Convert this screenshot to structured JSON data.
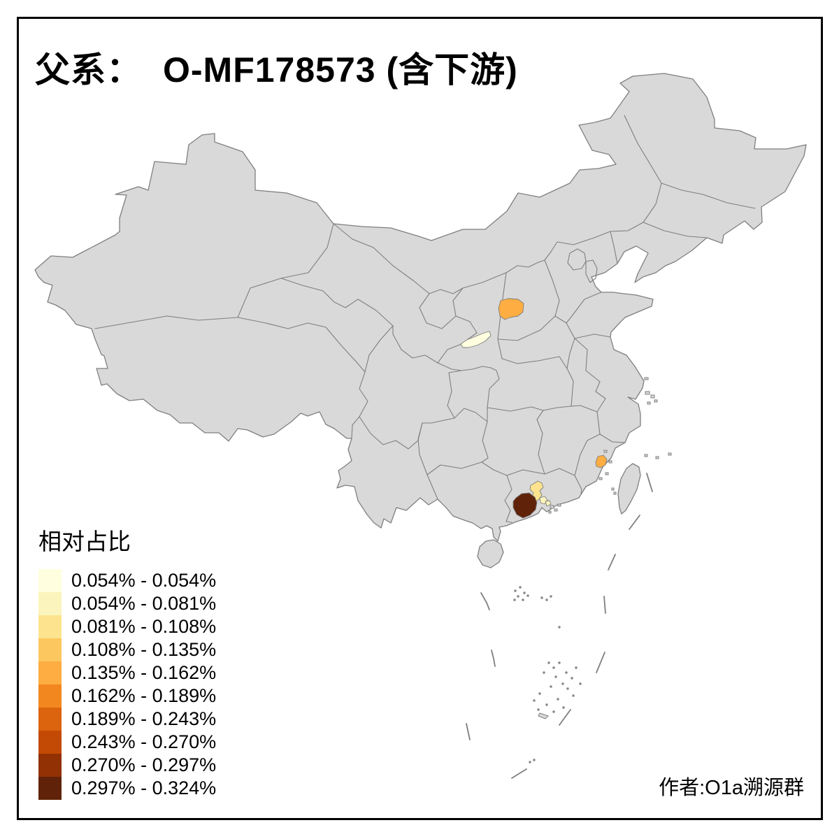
{
  "title": {
    "label": "父系：",
    "value": "O-MF178573 (含下游)"
  },
  "author_credit": "作者:O1a溯源群",
  "legend": {
    "title": "相对占比",
    "classes": [
      {
        "label": "0.054% - 0.054%",
        "color": "#FFFFE0"
      },
      {
        "label": "0.054% - 0.081%",
        "color": "#FBF4BC"
      },
      {
        "label": "0.081% - 0.108%",
        "color": "#FDE38E"
      },
      {
        "label": "0.108% - 0.135%",
        "color": "#FDC75F"
      },
      {
        "label": "0.135% - 0.162%",
        "color": "#FDAD41"
      },
      {
        "label": "0.162% - 0.189%",
        "color": "#F3871F"
      },
      {
        "label": "0.189% - 0.243%",
        "color": "#DC640E"
      },
      {
        "label": "0.243% - 0.270%",
        "color": "#C24A04"
      },
      {
        "label": "0.270% - 0.297%",
        "color": "#913104"
      },
      {
        "label": "0.297% - 0.324%",
        "color": "#602309"
      }
    ]
  },
  "map": {
    "land_color": "#D9D9D9",
    "border_color": "#7F7F7F",
    "frame_color": "#000000",
    "highlights": [
      {
        "id": "region-west-shanxi",
        "class_index": 4
      },
      {
        "id": "region-central-shaanxi",
        "class_index": 0
      },
      {
        "id": "region-fujian-coast",
        "class_index": 4
      },
      {
        "id": "region-pearl-north",
        "class_index": 2
      },
      {
        "id": "region-pearl-west",
        "class_index": 9
      },
      {
        "id": "region-pearl-small-1",
        "class_index": 1
      },
      {
        "id": "region-pearl-small-2",
        "class_index": 1
      }
    ]
  },
  "chart_data": {
    "type": "choropleth-map",
    "title": "父系： O-MF178573 (含下游)",
    "legend_title": "相对占比",
    "legend_position": "bottom-left",
    "class_labels": [
      "0.054% - 0.054%",
      "0.054% - 0.081%",
      "0.081% - 0.108%",
      "0.108% - 0.135%",
      "0.135% - 0.162%",
      "0.162% - 0.189%",
      "0.189% - 0.243%",
      "0.243% - 0.270%",
      "0.270% - 0.297%",
      "0.297% - 0.324%"
    ],
    "highlighted_regions": [
      {
        "location": "west Shanxi prefecture",
        "value_range": "0.135% - 0.162%"
      },
      {
        "location": "central Shaanxi (Guanzhong) prefecture",
        "value_range": "0.054% - 0.054%"
      },
      {
        "location": "coastal Fujian prefecture",
        "value_range": "0.135% - 0.162%"
      },
      {
        "location": "Pearl River Delta north prefecture",
        "value_range": "0.081% - 0.108%"
      },
      {
        "location": "Pearl River Delta west prefecture",
        "value_range": "0.297% - 0.324%"
      },
      {
        "location": "Pearl River Delta small prefecture 1",
        "value_range": "0.054% - 0.081%"
      },
      {
        "location": "Pearl River Delta small prefecture 2",
        "value_range": "0.054% - 0.081%"
      }
    ],
    "other_regions": "all remaining provinces/prefectures shown in gray (no data)"
  }
}
